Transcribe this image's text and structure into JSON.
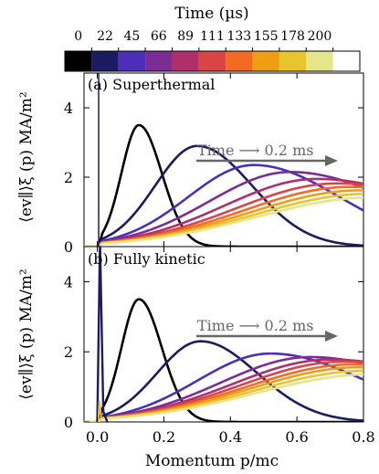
{
  "colorbar": {
    "title": "Time (µs)",
    "ticks": [
      "0",
      "22",
      "45",
      "66",
      "89",
      "111",
      "133",
      "155",
      "178",
      "200"
    ],
    "colors": [
      "#000000",
      "#1b1b61",
      "#4c2fb9",
      "#7b2d94",
      "#ae2f6a",
      "#d94447",
      "#f36b23",
      "#f09d16",
      "#e9c42e",
      "#e5e58a",
      "#ffffff"
    ]
  },
  "axes": {
    "xlabel": "Momentum p/mc",
    "ylabel": "⟨ev∥⟩ξ (p) MA/m²",
    "xticks": [
      "0.0",
      "0.2",
      "0.4",
      "0.6",
      "0.8"
    ],
    "yticks": [
      "0",
      "2",
      "4"
    ]
  },
  "chart_data": [
    {
      "type": "line",
      "title": "(a) Superthermal",
      "annotation": "Time ⟶ 0.2 ms",
      "xlim": [
        -0.04,
        0.8
      ],
      "ylim": [
        0,
        5.0
      ],
      "xlabel": "Momentum p/mc",
      "ylabel": "⟨ev∥⟩ξ (p) MA/m²",
      "series": [
        {
          "color": "#000000",
          "peak_x": 0.125,
          "peak_y": 3.5
        },
        {
          "color": "#1b1b61",
          "peak_x": 0.3,
          "peak_y": 2.9
        },
        {
          "color": "#4c2fb9",
          "peak_x": 0.47,
          "peak_y": 2.35
        },
        {
          "color": "#7b2d94",
          "peak_x": 0.58,
          "peak_y": 2.15
        },
        {
          "color": "#ae2f6a",
          "peak_x": 0.66,
          "peak_y": 1.95
        },
        {
          "color": "#d94447",
          "peak_x": 0.72,
          "peak_y": 1.82
        },
        {
          "color": "#f36b23",
          "peak_x": 0.76,
          "peak_y": 1.72
        },
        {
          "color": "#f09d16",
          "peak_x": 0.79,
          "peak_y": 1.62
        },
        {
          "color": "#e9c42e",
          "peak_x": 0.815,
          "peak_y": 1.52
        },
        {
          "color": "#e5e58a",
          "peak_x": 0.83,
          "peak_y": 1.42
        }
      ]
    },
    {
      "type": "line",
      "title": "(b) Fully kinetic",
      "annotation": "Time ⟶ 0.2 ms",
      "xlim": [
        -0.04,
        0.8
      ],
      "ylim": [
        0,
        5.0
      ],
      "xlabel": "Momentum p/mc",
      "ylabel": "⟨ev∥⟩ξ (p) MA/m²",
      "series": [
        {
          "color": "#000000",
          "peak_x": 0.125,
          "peak_y": 3.5
        },
        {
          "color": "#1b1b61",
          "peak_x": 0.31,
          "peak_y": 2.3
        },
        {
          "color": "#4c2fb9",
          "peak_x": 0.52,
          "peak_y": 1.95
        },
        {
          "color": "#7b2d94",
          "peak_x": 0.64,
          "peak_y": 1.85
        },
        {
          "color": "#ae2f6a",
          "peak_x": 0.7,
          "peak_y": 1.78
        },
        {
          "color": "#d94447",
          "peak_x": 0.74,
          "peak_y": 1.72
        },
        {
          "color": "#f36b23",
          "peak_x": 0.77,
          "peak_y": 1.64
        },
        {
          "color": "#f09d16",
          "peak_x": 0.79,
          "peak_y": 1.56
        },
        {
          "color": "#e9c42e",
          "peak_x": 0.81,
          "peak_y": 1.46
        },
        {
          "color": "#e5e58a",
          "peak_x": 0.825,
          "peak_y": 1.36
        }
      ]
    }
  ]
}
